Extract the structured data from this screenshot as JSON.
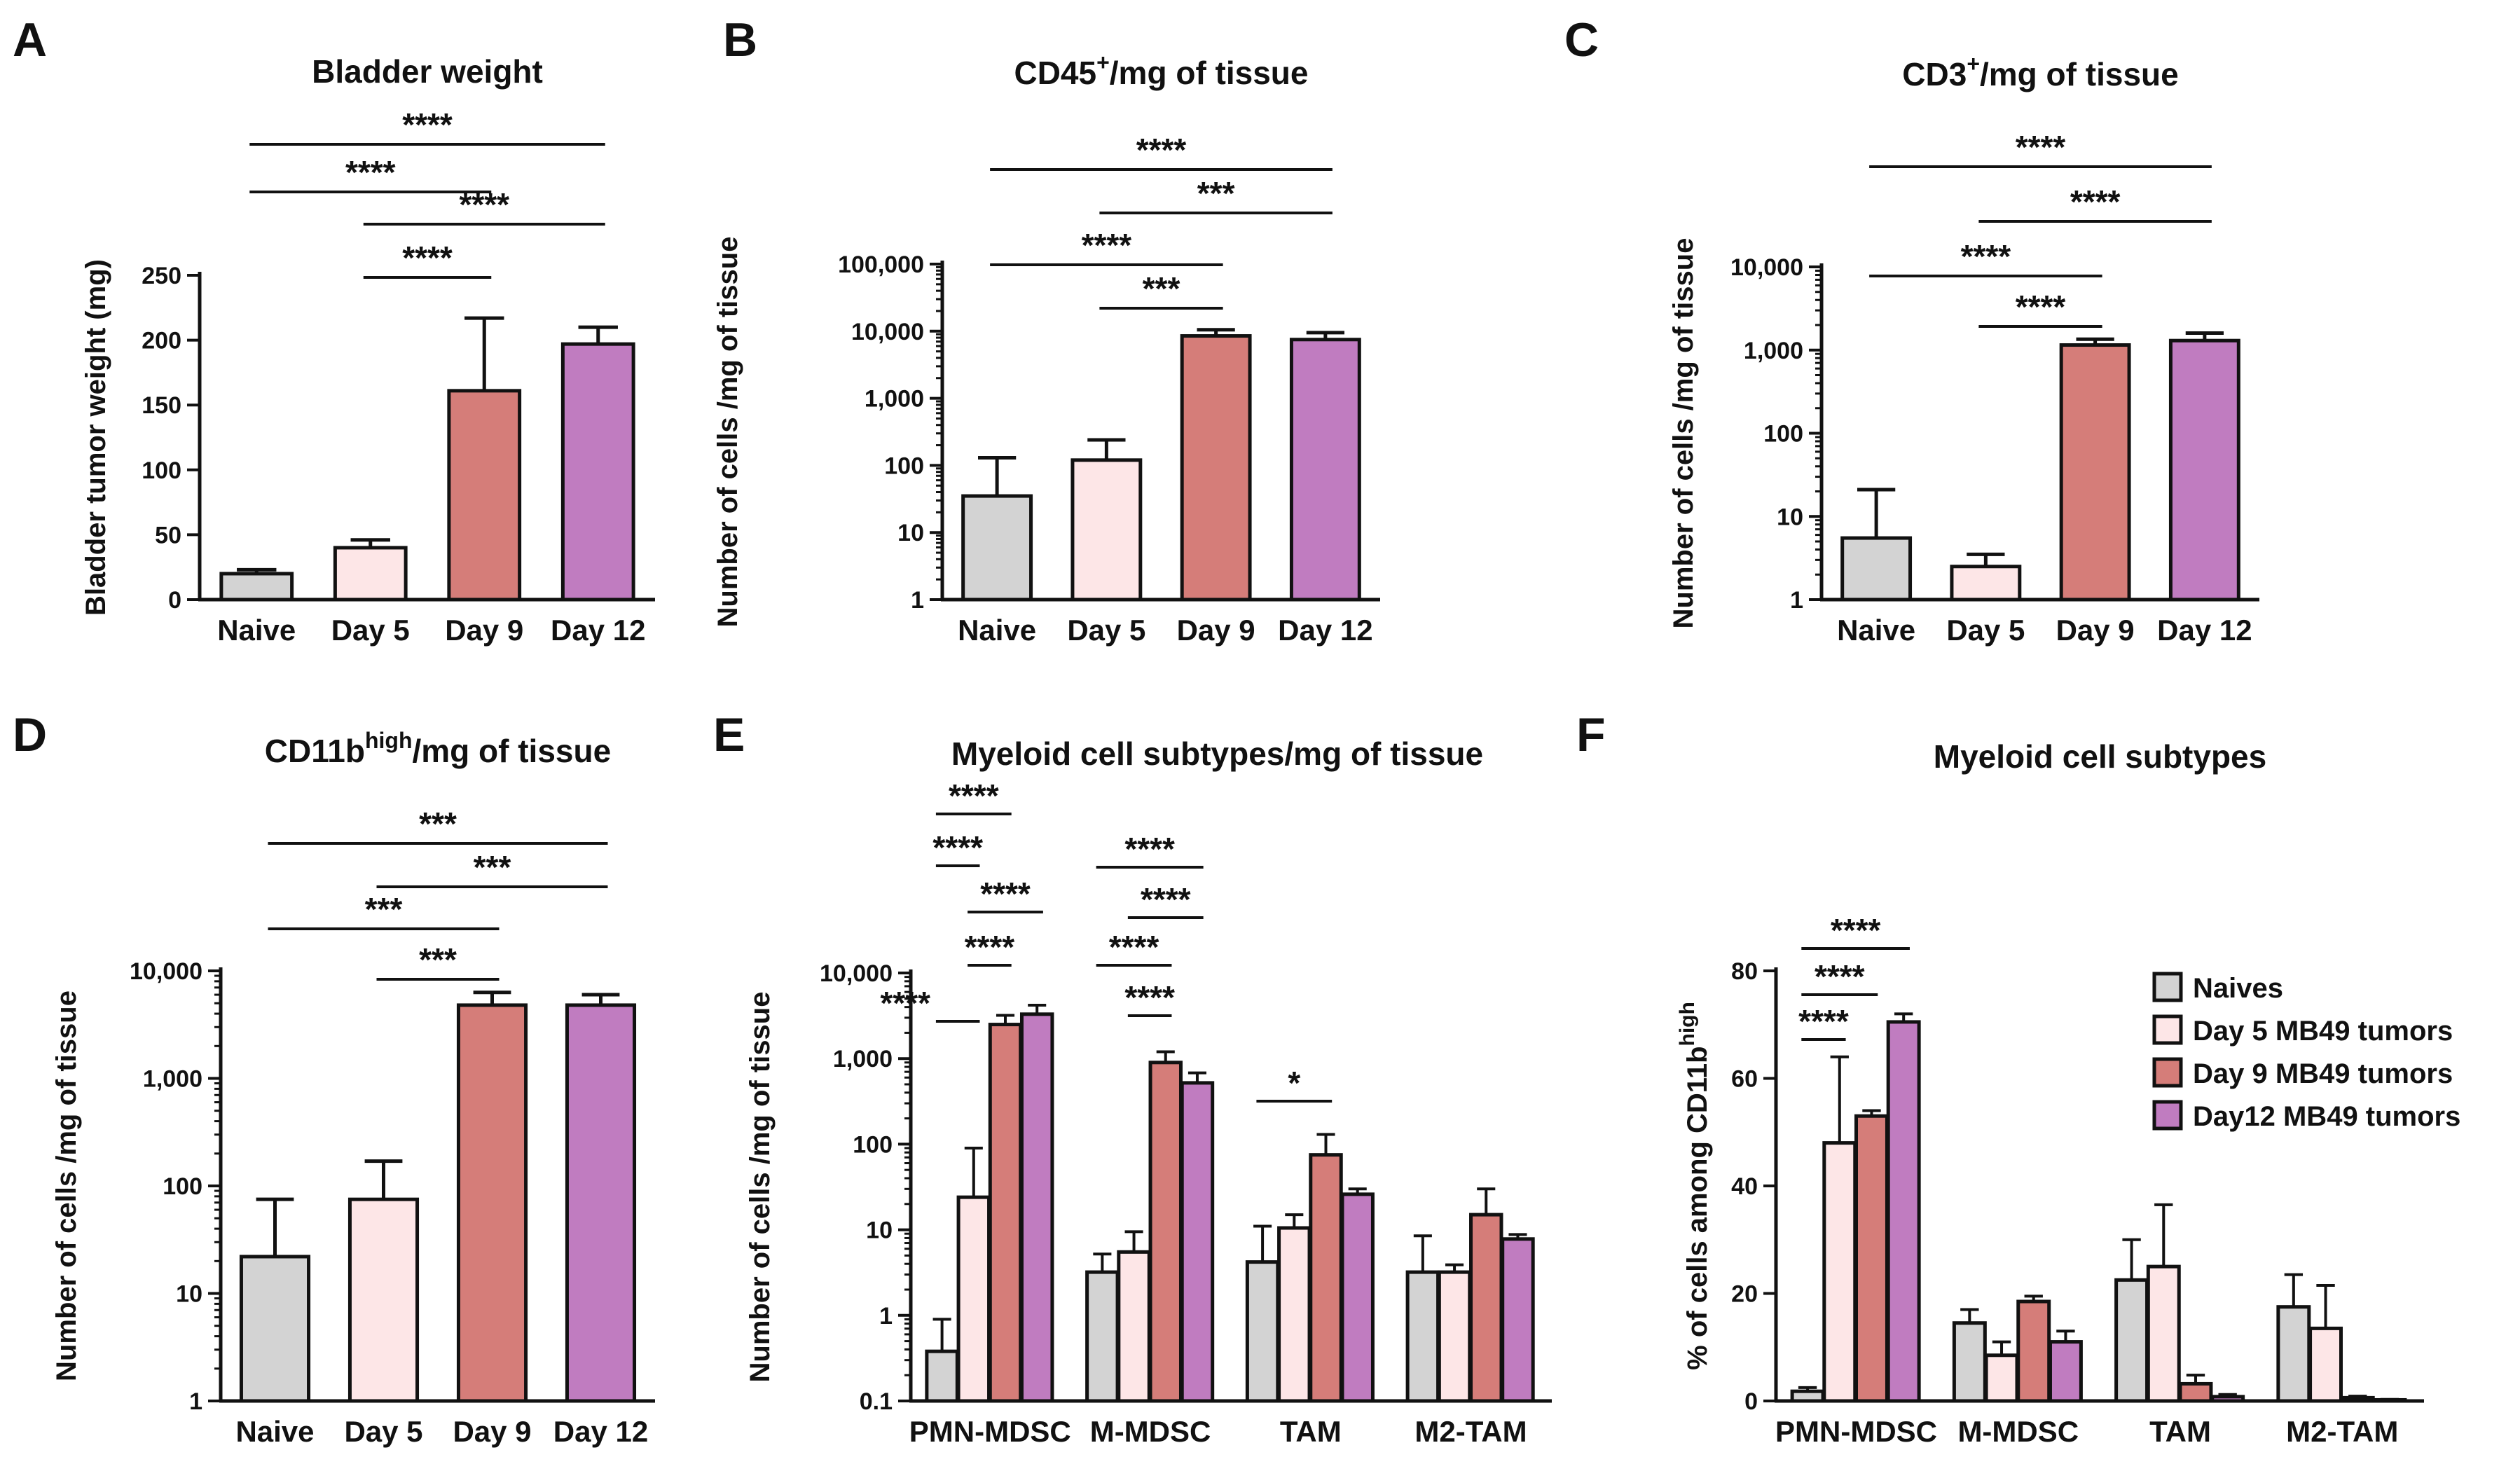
{
  "colors": {
    "naive": "#d3d3d3",
    "day5": "#fde6e7",
    "day9": "#d57d79",
    "day12": "#c07cc0",
    "axis": "#111111"
  },
  "chart_data": [
    {
      "label": "A",
      "type": "bar",
      "title": "Bladder weight",
      "ylabel": "Bladder tumor weight (mg)",
      "scale": "linear",
      "ylim": [
        0,
        250
      ],
      "ticks": [
        0,
        50,
        100,
        150,
        200,
        250
      ],
      "tick_labels": [
        "0",
        "50",
        "100",
        "150",
        "200",
        "250"
      ],
      "categories": [
        "Naive",
        "Day  5",
        "Day 9",
        "Day 12"
      ],
      "values": [
        20,
        40,
        161,
        197
      ],
      "errors": [
        23,
        46,
        217,
        210
      ],
      "significance": [
        {
          "from": 0,
          "to": 3,
          "text": "****",
          "level": 1
        },
        {
          "from": 0,
          "to": 2,
          "text": "****",
          "level": 2
        },
        {
          "from": 1,
          "to": 3,
          "text": "****",
          "level": 3
        },
        {
          "from": 1,
          "to": 2,
          "text": "****",
          "level": 4
        }
      ]
    },
    {
      "label": "B",
      "type": "bar",
      "title": "CD45",
      "title_sup": "+",
      "title_rest": "/mg of tissue",
      "ylabel": "Number of cells /mg of tissue",
      "scale": "log",
      "ylim": [
        1,
        100000
      ],
      "ticks": [
        1,
        10,
        100,
        1000,
        10000,
        100000
      ],
      "tick_labels": [
        "1",
        "10",
        "100",
        "1,000",
        "10,000",
        "100,000"
      ],
      "categories": [
        "Naive",
        "Day  5",
        "Day 9",
        "Day 12"
      ],
      "values": [
        35,
        120,
        8500,
        7500
      ],
      "errors": [
        130,
        240,
        10500,
        9500
      ],
      "significance": [
        {
          "from": 0,
          "to": 3,
          "text": "****",
          "level": 1
        },
        {
          "from": 1,
          "to": 3,
          "text": "***",
          "level": 2
        },
        {
          "from": 0,
          "to": 2,
          "text": "****",
          "level": 3
        },
        {
          "from": 1,
          "to": 2,
          "text": "***",
          "level": 4
        }
      ]
    },
    {
      "label": "C",
      "type": "bar",
      "title": "CD3",
      "title_sup": "+",
      "title_rest": "/mg of tissue",
      "ylabel": "Number of cells /mg of tissue",
      "scale": "log",
      "ylim": [
        1,
        10000
      ],
      "ticks": [
        1,
        10,
        100,
        1000,
        10000
      ],
      "tick_labels": [
        "1",
        "10",
        "100",
        "1,000",
        "10,000"
      ],
      "categories": [
        "Naive",
        "Day  5",
        "Day 9",
        "Day 12"
      ],
      "values": [
        5.5,
        2.5,
        1150,
        1300
      ],
      "errors": [
        21,
        3.5,
        1350,
        1600
      ],
      "significance": [
        {
          "from": 0,
          "to": 3,
          "text": "****",
          "level": 1
        },
        {
          "from": 1,
          "to": 3,
          "text": "****",
          "level": 2
        },
        {
          "from": 0,
          "to": 2,
          "text": "****",
          "level": 3
        },
        {
          "from": 1,
          "to": 2,
          "text": "****",
          "level": 4
        }
      ]
    },
    {
      "label": "D",
      "type": "bar",
      "title": "CD11b",
      "title_sup": "high",
      "title_rest": "/mg of tissue",
      "ylabel": "Number of cells /mg of tissue",
      "scale": "log",
      "ylim": [
        1,
        10000
      ],
      "ticks": [
        1,
        10,
        100,
        1000,
        10000
      ],
      "tick_labels": [
        "1",
        "10",
        "100",
        "1,000",
        "10,000"
      ],
      "categories": [
        "Naive",
        "Day  5",
        "Day 9",
        "Day 12"
      ],
      "values": [
        22,
        75,
        4800,
        4800
      ],
      "errors": [
        75,
        170,
        6300,
        6000
      ],
      "significance": [
        {
          "from": 0,
          "to": 3,
          "text": "***",
          "level": 1
        },
        {
          "from": 1,
          "to": 3,
          "text": "***",
          "level": 2
        },
        {
          "from": 0,
          "to": 2,
          "text": "***",
          "level": 3
        },
        {
          "from": 1,
          "to": 2,
          "text": "***",
          "level": 4
        }
      ]
    },
    {
      "label": "E",
      "type": "grouped-bar",
      "title": "Myeloid cell subtypes/mg of tissue",
      "ylabel": "Number of cells /mg of tissue",
      "scale": "log",
      "ylim": [
        0.1,
        10000
      ],
      "ticks": [
        0.1,
        1,
        10,
        100,
        1000,
        10000
      ],
      "tick_labels": [
        "0.1",
        "1",
        "10",
        "100",
        "1,000",
        "10,000"
      ],
      "categories": [
        "PMN-MDSC",
        "M-MDSC",
        "TAM",
        "M2-TAM"
      ],
      "series": [
        {
          "name": "Naives",
          "values": [
            0.38,
            3.2,
            4.2,
            3.2
          ],
          "errors": [
            0.9,
            5.2,
            11,
            8.5
          ]
        },
        {
          "name": "Day 5 MB49 tumors",
          "values": [
            24,
            5.5,
            10.5,
            3.2
          ],
          "errors": [
            90,
            9.5,
            15,
            3.9
          ]
        },
        {
          "name": "Day 9 MB49 tumors",
          "values": [
            2500,
            900,
            75,
            15
          ],
          "errors": [
            3200,
            1200,
            130,
            30
          ]
        },
        {
          "name": "Day12 MB49 tumors",
          "values": [
            3300,
            520,
            26,
            7.8
          ],
          "errors": [
            4200,
            680,
            30,
            8.8
          ]
        }
      ],
      "significance": [
        {
          "group": 0,
          "from": 0,
          "to": 2,
          "text": "****"
        },
        {
          "group": 0,
          "from": 0,
          "to": 1,
          "text": "****"
        },
        {
          "group": 0,
          "from": 1,
          "to": 3,
          "text": "****"
        },
        {
          "group": 0,
          "from": 1,
          "to": 2,
          "text": "****"
        },
        {
          "group": 0,
          "from": 0,
          "to": 1,
          "text": "****"
        },
        {
          "group": 1,
          "from": 0,
          "to": 3,
          "text": "****"
        },
        {
          "group": 1,
          "from": 1,
          "to": 3,
          "text": "****"
        },
        {
          "group": 1,
          "from": 0,
          "to": 2,
          "text": "****"
        },
        {
          "group": 1,
          "from": 1,
          "to": 2,
          "text": "****"
        },
        {
          "group": 2,
          "from": 0,
          "to": 2,
          "text": "*"
        }
      ]
    },
    {
      "label": "F",
      "type": "grouped-bar",
      "title": "Myeloid cell subtypes",
      "ylabel": "% of cells among CD11b",
      "ylabel_sup": "high",
      "scale": "linear",
      "ylim": [
        0,
        80
      ],
      "ticks": [
        0,
        20,
        40,
        60,
        80
      ],
      "tick_labels": [
        "0",
        "20",
        "40",
        "60",
        "80"
      ],
      "categories": [
        "PMN-MDSC",
        "M-MDSC",
        "TAM",
        "M2-TAM"
      ],
      "series": [
        {
          "name": "Naives",
          "values": [
            1.8,
            14.5,
            22.5,
            17.5
          ],
          "errors": [
            2.5,
            17,
            30,
            23.5
          ]
        },
        {
          "name": "Day 5 MB49 tumors",
          "values": [
            48,
            8.5,
            25,
            13.5
          ],
          "errors": [
            64,
            11,
            36.5,
            21.5
          ]
        },
        {
          "name": "Day 9 MB49 tumors",
          "values": [
            53,
            18.5,
            3.2,
            0.6
          ],
          "errors": [
            54,
            19.5,
            4.8,
            0.9
          ]
        },
        {
          "name": "Day12 MB49 tumors",
          "values": [
            70.5,
            11,
            0.8,
            0.2
          ],
          "errors": [
            72,
            13,
            1.2,
            0.3
          ]
        }
      ],
      "significance": [
        {
          "group": 0,
          "from": 0,
          "to": 3,
          "text": "****"
        },
        {
          "group": 0,
          "from": 0,
          "to": 2,
          "text": "****"
        },
        {
          "group": 0,
          "from": 0,
          "to": 1,
          "text": "****"
        }
      ],
      "legend": [
        "Naives",
        "Day 5 MB49 tumors",
        "Day 9 MB49 tumors",
        "Day12 MB49 tumors"
      ]
    }
  ]
}
